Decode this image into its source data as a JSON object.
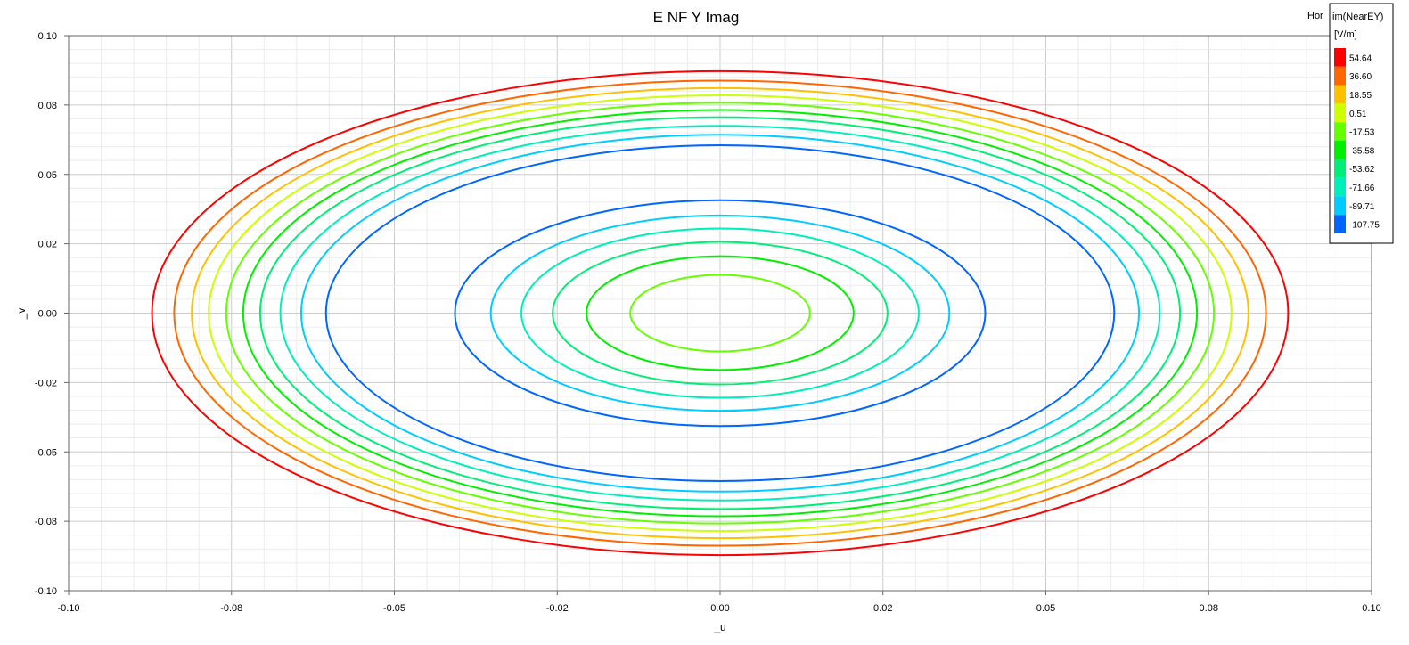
{
  "chart_data": {
    "type": "contour",
    "title": "E NF Y Imag",
    "xlabel": "_u",
    "ylabel": "_v",
    "xlim": [
      -0.1,
      0.1
    ],
    "ylim": [
      -0.1,
      0.1
    ],
    "x_ticks": [
      "-0.10",
      "-0.08",
      "-0.05",
      "-0.02",
      "0.00",
      "0.02",
      "0.05",
      "0.08",
      "0.10"
    ],
    "y_ticks": [
      "0.10",
      "0.08",
      "0.05",
      "0.02",
      "0.00",
      "-0.02",
      "-0.05",
      "-0.08",
      "-0.10"
    ],
    "grid": true,
    "legend": {
      "title": "im(NearEY)",
      "unit": "[V/m]",
      "placement": "top-right",
      "entries": [
        {
          "label": "54.64",
          "color": "#ff0000"
        },
        {
          "label": "36.60",
          "color": "#ff6600"
        },
        {
          "label": "18.55",
          "color": "#ffc000"
        },
        {
          "label": "0.51",
          "color": "#ccff00"
        },
        {
          "label": "-17.53",
          "color": "#66ff00"
        },
        {
          "label": "-35.58",
          "color": "#00ee00"
        },
        {
          "label": "-53.62",
          "color": "#00ee77"
        },
        {
          "label": "-71.66",
          "color": "#00eebb"
        },
        {
          "label": "-89.71",
          "color": "#00ccff"
        },
        {
          "label": "-107.75",
          "color": "#0066ff"
        }
      ]
    },
    "partial_label": "Hor",
    "contours": [
      {
        "level": "inner",
        "color": "#66ff00",
        "rx": 0.0138,
        "ry": 0.0138
      },
      {
        "level": "inner",
        "color": "#00ee00",
        "rx": 0.0205,
        "ry": 0.0205
      },
      {
        "level": "inner",
        "color": "#00ee77",
        "rx": 0.0257,
        "ry": 0.0257
      },
      {
        "level": "inner",
        "color": "#00eebb",
        "rx": 0.0305,
        "ry": 0.0305
      },
      {
        "level": "inner",
        "color": "#00ccff",
        "rx": 0.0352,
        "ry": 0.0352
      },
      {
        "level": "inner",
        "color": "#0066ff",
        "rx": 0.0407,
        "ry": 0.0407
      },
      {
        "level": "outer",
        "color": "#0066ff",
        "rx": 0.0605,
        "ry": 0.0605
      },
      {
        "level": "outer",
        "color": "#00ccff",
        "rx": 0.0643,
        "ry": 0.0643
      },
      {
        "level": "outer",
        "color": "#00eebb",
        "rx": 0.0675,
        "ry": 0.0675
      },
      {
        "level": "outer",
        "color": "#00ee77",
        "rx": 0.0706,
        "ry": 0.0706
      },
      {
        "level": "outer",
        "color": "#00ee00",
        "rx": 0.0732,
        "ry": 0.0732
      },
      {
        "level": "outer",
        "color": "#66ff00",
        "rx": 0.0758,
        "ry": 0.0758
      },
      {
        "level": "outer",
        "color": "#ccff00",
        "rx": 0.0785,
        "ry": 0.0785
      },
      {
        "level": "outer",
        "color": "#ffc000",
        "rx": 0.0811,
        "ry": 0.0811
      },
      {
        "level": "outer",
        "color": "#ff6600",
        "rx": 0.0838,
        "ry": 0.0838
      },
      {
        "level": "outer",
        "color": "#ff0000",
        "rx": 0.0872,
        "ry": 0.0872
      }
    ]
  }
}
